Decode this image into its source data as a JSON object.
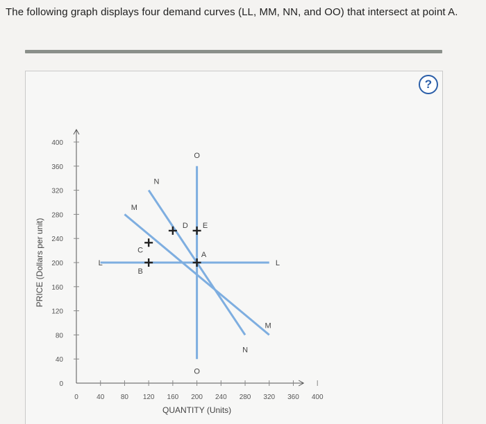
{
  "question": {
    "text": "The following graph displays four demand curves (LL, MM, NN, and OO) that intersect at point A."
  },
  "help": {
    "label": "?"
  },
  "chart_data": {
    "type": "line",
    "xlabel": "QUANTITY (Units)",
    "ylabel": "PRICE (Dollars per unit)",
    "xlim": [
      0,
      400
    ],
    "ylim": [
      0,
      400
    ],
    "xticks": [
      0,
      40,
      80,
      120,
      160,
      200,
      240,
      280,
      320,
      360,
      400
    ],
    "yticks": [
      0,
      40,
      80,
      120,
      160,
      200,
      240,
      280,
      320,
      360,
      400
    ],
    "series": [
      {
        "name": "L",
        "points": [
          [
            40,
            200
          ],
          [
            320,
            200
          ]
        ]
      },
      {
        "name": "M",
        "points": [
          [
            80,
            280
          ],
          [
            320,
            80
          ]
        ]
      },
      {
        "name": "N",
        "points": [
          [
            120,
            320
          ],
          [
            280,
            80
          ]
        ]
      },
      {
        "name": "O",
        "points": [
          [
            200,
            360
          ],
          [
            200,
            40
          ]
        ]
      }
    ],
    "curve_labels": [
      {
        "text": "L",
        "x": 40,
        "y": 200
      },
      {
        "text": "L",
        "x": 334,
        "y": 200
      },
      {
        "text": "M",
        "x": 96,
        "y": 292
      },
      {
        "text": "M",
        "x": 318,
        "y": 96
      },
      {
        "text": "N",
        "x": 133,
        "y": 335
      },
      {
        "text": "N",
        "x": 280,
        "y": 56
      },
      {
        "text": "O",
        "x": 200,
        "y": 378
      },
      {
        "text": "O",
        "x": 200,
        "y": 20
      }
    ],
    "points": [
      {
        "label": "A",
        "x": 200,
        "y": 200,
        "label_dx": 10,
        "label_dy": 12
      },
      {
        "label": "B",
        "x": 120,
        "y": 200,
        "label_dx": -12,
        "label_dy": -12
      },
      {
        "label": "C",
        "x": 120,
        "y": 233,
        "label_dx": -12,
        "label_dy": -10
      },
      {
        "label": "D",
        "x": 160,
        "y": 253,
        "label_dx": 18,
        "label_dy": 8
      },
      {
        "label": "E",
        "x": 200,
        "y": 253,
        "label_dx": 12,
        "label_dy": 8
      }
    ],
    "colors": {
      "curve": "#7eaee0",
      "axis": "#555555",
      "grid_tick": "#888888"
    }
  }
}
